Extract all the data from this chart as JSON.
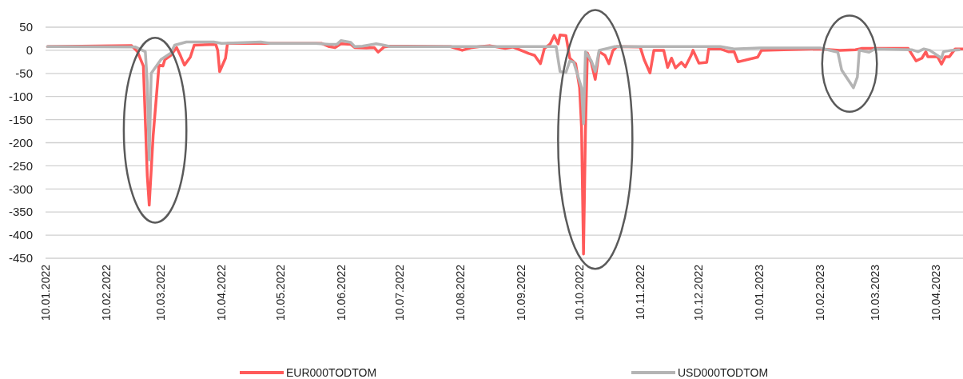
{
  "chart_data": {
    "type": "line",
    "xlim": [
      "2022-01-10",
      "2023-04-24"
    ],
    "xticks": [
      {
        "value": "2022-01-10",
        "label": "10.01.2022"
      },
      {
        "value": "2022-02-10",
        "label": "10.02.2022"
      },
      {
        "value": "2022-03-10",
        "label": "10.03.2022"
      },
      {
        "value": "2022-04-10",
        "label": "10.04.2022"
      },
      {
        "value": "2022-05-10",
        "label": "10.05.2022"
      },
      {
        "value": "2022-06-10",
        "label": "10.06.2022"
      },
      {
        "value": "2022-07-10",
        "label": "10.07.2022"
      },
      {
        "value": "2022-08-10",
        "label": "10.08.2022"
      },
      {
        "value": "2022-09-10",
        "label": "10.09.2022"
      },
      {
        "value": "2022-10-10",
        "label": "10.10.2022"
      },
      {
        "value": "2022-11-10",
        "label": "10.11.2022"
      },
      {
        "value": "2022-12-10",
        "label": "10.12.2022"
      },
      {
        "value": "2023-01-10",
        "label": "10.01.2023"
      },
      {
        "value": "2023-02-10",
        "label": "10.02.2023"
      },
      {
        "value": "2023-03-10",
        "label": "10.03.2023"
      },
      {
        "value": "2023-04-10",
        "label": "10.04.2023"
      }
    ],
    "ylim": [
      -450,
      50
    ],
    "yticks": [
      -450,
      -400,
      -350,
      -300,
      -250,
      -200,
      -150,
      -100,
      -50,
      0,
      50
    ],
    "grid": "y",
    "legend": "bottom",
    "marker": "none",
    "line_style": "solid",
    "series": [
      {
        "name": "EUR000TODTOM",
        "color": "#ff5a5a",
        "x": [
          "2022-01-11",
          "2022-02-23",
          "2022-02-26",
          "2022-03-01",
          "2022-03-03",
          "2022-03-04",
          "2022-03-06",
          "2022-03-09",
          "2022-03-11",
          "2022-03-12",
          "2022-03-15",
          "2022-03-18",
          "2022-03-20",
          "2022-03-22",
          "2022-03-25",
          "2022-03-27",
          "2022-04-07",
          "2022-04-08",
          "2022-04-09",
          "2022-04-12",
          "2022-04-13",
          "2022-04-24",
          "2022-05-31",
          "2022-06-04",
          "2022-06-07",
          "2022-06-10",
          "2022-06-15",
          "2022-06-17",
          "2022-06-23",
          "2022-06-27",
          "2022-06-29",
          "2022-07-02",
          "2022-07-05",
          "2022-08-05",
          "2022-08-11",
          "2022-08-16",
          "2022-08-20",
          "2022-08-25",
          "2022-09-02",
          "2022-09-06",
          "2022-09-10",
          "2022-09-14",
          "2022-09-17",
          "2022-09-20",
          "2022-09-22",
          "2022-09-25",
          "2022-09-27",
          "2022-09-29",
          "2022-09-30",
          "2022-10-03",
          "2022-10-05",
          "2022-10-08",
          "2022-10-10",
          "2022-10-11",
          "2022-10-12",
          "2022-10-13",
          "2022-10-14",
          "2022-10-16",
          "2022-10-18",
          "2022-10-20",
          "2022-10-23",
          "2022-10-25",
          "2022-10-27",
          "2022-10-29",
          "2022-11-10",
          "2022-11-12",
          "2022-11-15",
          "2022-11-17",
          "2022-11-22",
          "2022-11-24",
          "2022-11-26",
          "2022-11-28",
          "2022-12-01",
          "2022-12-03",
          "2022-12-06",
          "2022-12-07",
          "2022-12-10",
          "2022-12-14",
          "2022-12-15",
          "2022-12-21",
          "2022-12-25",
          "2022-12-28",
          "2022-12-30",
          "2023-01-09",
          "2023-01-11",
          "2023-02-10",
          "2023-02-20",
          "2023-02-28",
          "2023-03-03",
          "2023-03-27",
          "2023-03-31",
          "2023-04-03",
          "2023-04-05",
          "2023-04-06",
          "2023-04-11",
          "2023-04-13",
          "2023-04-15",
          "2023-04-17",
          "2023-04-20",
          "2023-04-24"
        ],
        "values": [
          8,
          10,
          -3,
          -34,
          -271,
          -335,
          -185,
          -32,
          -34,
          -20,
          -11,
          6,
          -12,
          -32,
          -15,
          11,
          13,
          0,
          -46,
          -17,
          15,
          15,
          15,
          8,
          6,
          14,
          13,
          6,
          5,
          6,
          -4,
          7,
          9,
          8,
          0,
          6,
          8,
          10,
          4,
          7,
          0,
          -7,
          -11,
          -29,
          4,
          14,
          32,
          14,
          33,
          32,
          -17,
          -29,
          -81,
          -167,
          -441,
          -173,
          -6,
          -27,
          -63,
          -3,
          -11,
          -29,
          -1,
          8,
          7,
          -20,
          -49,
          0,
          0,
          -37,
          -17,
          -38,
          -26,
          -36,
          -11,
          0,
          -28,
          -26,
          3,
          3,
          -3,
          -3,
          -25,
          -15,
          0,
          3,
          0,
          1,
          4,
          4,
          -23,
          -17,
          -3,
          -14,
          -14,
          -30,
          -14,
          -14,
          3,
          3
        ]
      },
      {
        "name": "USD000TODTOM",
        "color": "#b4b4b4",
        "x": [
          "2022-01-11",
          "2022-02-25",
          "2022-03-02",
          "2022-03-03",
          "2022-03-04",
          "2022-03-05",
          "2022-03-10",
          "2022-03-15",
          "2022-03-17",
          "2022-03-23",
          "2022-04-06",
          "2022-04-10",
          "2022-04-30",
          "2022-05-05",
          "2022-05-28",
          "2022-06-04",
          "2022-06-08",
          "2022-06-10",
          "2022-06-15",
          "2022-06-17",
          "2022-06-21",
          "2022-06-28",
          "2022-07-02",
          "2022-07-05",
          "2022-09-28",
          "2022-09-30",
          "2022-10-03",
          "2022-10-05",
          "2022-10-07",
          "2022-10-11",
          "2022-10-12",
          "2022-10-13",
          "2022-10-16",
          "2022-10-18",
          "2022-10-20",
          "2022-10-24",
          "2022-10-28",
          "2022-12-21",
          "2022-12-28",
          "2023-01-10",
          "2023-02-10",
          "2023-02-19",
          "2023-02-21",
          "2023-02-27",
          "2023-03-01",
          "2023-03-02",
          "2023-03-07",
          "2023-03-10",
          "2023-03-29",
          "2023-04-01",
          "2023-04-04",
          "2023-04-07",
          "2023-04-13",
          "2023-04-14",
          "2023-04-18",
          "2023-04-22"
        ],
        "values": [
          8,
          7,
          -3,
          -69,
          -237,
          -50,
          -20,
          -6,
          11,
          18,
          18,
          15,
          18,
          15,
          15,
          13,
          13,
          21,
          17,
          8,
          9,
          14,
          11,
          8,
          8,
          -46,
          -48,
          -23,
          -26,
          -81,
          -159,
          -3,
          -23,
          -46,
          0,
          4,
          8,
          8,
          3,
          5,
          5,
          -4,
          -43,
          -81,
          -58,
          0,
          -4,
          3,
          1,
          -3,
          3,
          0,
          -17,
          -3,
          0,
          1
        ]
      }
    ]
  }
}
